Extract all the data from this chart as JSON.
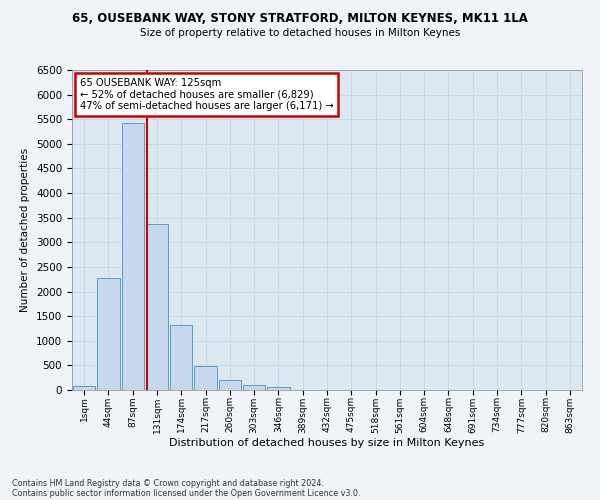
{
  "title": "65, OUSEBANK WAY, STONY STRATFORD, MILTON KEYNES, MK11 1LA",
  "subtitle": "Size of property relative to detached houses in Milton Keynes",
  "xlabel": "Distribution of detached houses by size in Milton Keynes",
  "ylabel": "Number of detached properties",
  "footnote1": "Contains HM Land Registry data © Crown copyright and database right 2024.",
  "footnote2": "Contains public sector information licensed under the Open Government Licence v3.0.",
  "categories": [
    "1sqm",
    "44sqm",
    "87sqm",
    "131sqm",
    "174sqm",
    "217sqm",
    "260sqm",
    "303sqm",
    "346sqm",
    "389sqm",
    "432sqm",
    "475sqm",
    "518sqm",
    "561sqm",
    "604sqm",
    "648sqm",
    "691sqm",
    "734sqm",
    "777sqm",
    "820sqm",
    "863sqm"
  ],
  "bar_heights": [
    75,
    2280,
    5420,
    3380,
    1330,
    480,
    195,
    100,
    55,
    0,
    0,
    0,
    0,
    0,
    0,
    0,
    0,
    0,
    0,
    0,
    0
  ],
  "bar_color": "#c5d8ed",
  "bar_edge_color": "#5a9cc5",
  "property_line_x": 2.57,
  "property_label": "65 OUSEBANK WAY: 125sqm",
  "annotation_line1": "← 52% of detached houses are smaller (6,829)",
  "annotation_line2": "47% of semi-detached houses are larger (6,171) →",
  "annotation_box_color": "#ffffff",
  "annotation_box_edge_color": "#cc0000",
  "line_color": "#cc0000",
  "ylim": [
    0,
    6500
  ],
  "yticks": [
    0,
    500,
    1000,
    1500,
    2000,
    2500,
    3000,
    3500,
    4000,
    4500,
    5000,
    5500,
    6000,
    6500
  ],
  "grid_color": "#c8d8e8",
  "background_color": "#dce8f0",
  "fig_facecolor": "#f0f4f8"
}
